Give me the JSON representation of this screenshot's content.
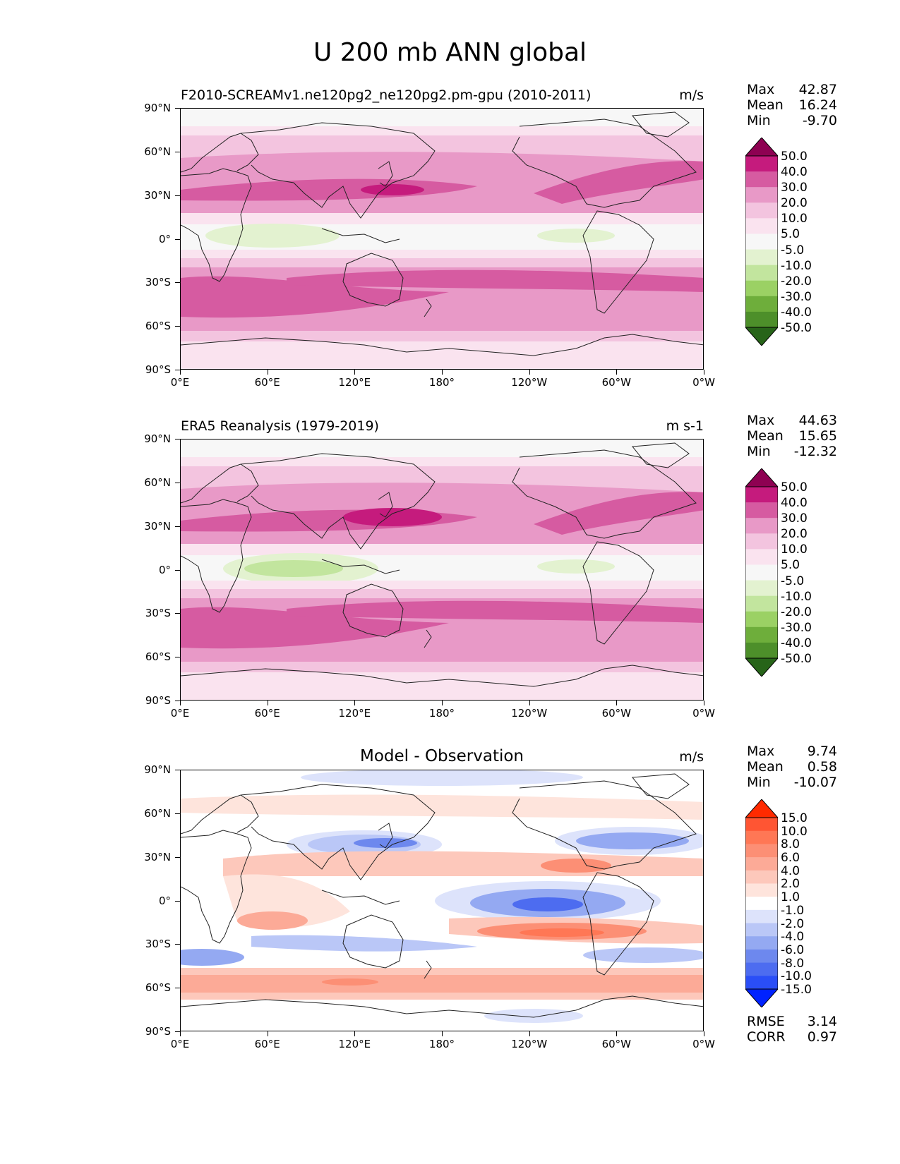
{
  "figure_title": "U 200 mb ANN global",
  "panels": [
    {
      "title": "F2010-SCREAMv1.ne120pg2_ne120pg2.pm-gpu (2010-2011)",
      "units": "m/s",
      "stats": {
        "max_label": "Max",
        "max": "42.87",
        "mean_label": "Mean",
        "mean": "16.24",
        "min_label": "Min",
        "min": "-9.70"
      }
    },
    {
      "title": "ERA5 Reanalysis (1979-2019)",
      "units": "m s-1",
      "stats": {
        "max_label": "Max",
        "max": "44.63",
        "mean_label": "Mean",
        "mean": "15.65",
        "min_label": "Min",
        "min": "-12.32"
      }
    },
    {
      "title": "Model - Observation",
      "units": "m/s",
      "stats": {
        "max_label": "Max",
        "max": "9.74",
        "mean_label": "Mean",
        "mean": "0.58",
        "min_label": "Min",
        "min": "-10.07"
      },
      "metrics": {
        "rmse_label": "RMSE",
        "rmse": "3.14",
        "corr_label": "CORR",
        "corr": "0.97"
      }
    }
  ],
  "lat_labels": [
    "90°N",
    "60°N",
    "30°N",
    "0°",
    "30°S",
    "60°S",
    "90°S"
  ],
  "lon_labels": [
    "0°E",
    "60°E",
    "120°E",
    "180°",
    "120°W",
    "60°W",
    "0°W"
  ],
  "colorbar_main": {
    "levels": [
      "50.0",
      "40.0",
      "30.0",
      "20.0",
      "10.0",
      "5.0",
      "-5.0",
      "-10.0",
      "-20.0",
      "-30.0",
      "-40.0",
      "-50.0"
    ],
    "colors": [
      "#8e0152",
      "#c51b7d",
      "#d65ba1",
      "#e899c7",
      "#f3c4df",
      "#fae3ef",
      "#f7f7f7",
      "#e3f2d0",
      "#c2e59e",
      "#9bd164",
      "#6eae3b",
      "#4d8f2a",
      "#276419"
    ]
  },
  "colorbar_diff": {
    "levels": [
      "15.0",
      "10.0",
      "8.0",
      "6.0",
      "4.0",
      "2.0",
      "1.0",
      "-1.0",
      "-2.0",
      "-4.0",
      "-6.0",
      "-8.0",
      "-10.0",
      "-15.0"
    ],
    "colors": [
      "#ff2a00",
      "#ff5533",
      "#ff7755",
      "#fc8f75",
      "#fcaa97",
      "#fdc8bb",
      "#fee4dc",
      "#ffffff",
      "#dde3fb",
      "#bac7f7",
      "#94a9f2",
      "#6d88ee",
      "#4d6cf0",
      "#2a4ef7",
      "#0022ff"
    ]
  }
}
